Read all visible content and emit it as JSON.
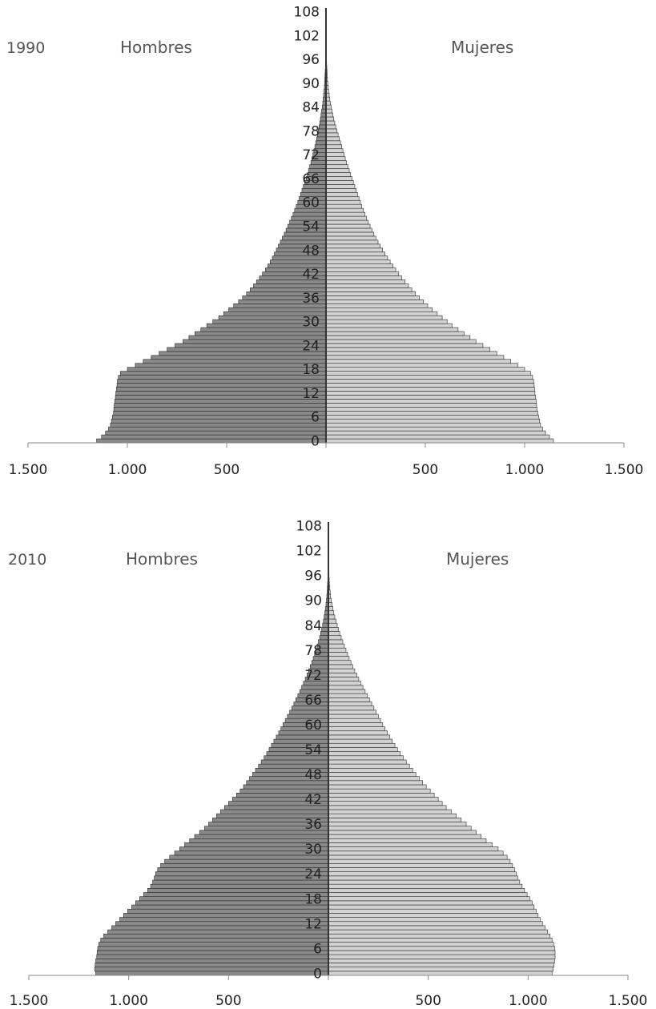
{
  "chart_data": [
    {
      "type": "bar",
      "orientation": "population-pyramid",
      "year_label": "1990",
      "left_label": "Hombres",
      "right_label": "Mujeres",
      "ages": [
        0,
        1,
        2,
        3,
        4,
        5,
        6,
        7,
        8,
        9,
        10,
        11,
        12,
        13,
        14,
        15,
        16,
        17,
        18,
        19,
        20,
        21,
        22,
        23,
        24,
        25,
        26,
        27,
        28,
        29,
        30,
        31,
        32,
        33,
        34,
        35,
        36,
        37,
        38,
        39,
        40,
        41,
        42,
        43,
        44,
        45,
        46,
        47,
        48,
        49,
        50,
        51,
        52,
        53,
        54,
        55,
        56,
        57,
        58,
        59,
        60,
        61,
        62,
        63,
        64,
        65,
        66,
        67,
        68,
        69,
        70,
        71,
        72,
        73,
        74,
        75,
        76,
        77,
        78,
        79,
        80,
        81,
        82,
        83,
        84,
        85,
        86,
        87,
        88,
        89,
        90,
        91,
        92,
        93,
        94,
        95,
        96,
        97,
        98,
        99,
        100,
        101,
        102,
        103,
        104,
        105,
        106,
        107,
        108
      ],
      "age_tick_labels": [
        "0",
        "6",
        "12",
        "18",
        "24",
        "30",
        "36",
        "42",
        "48",
        "54",
        "60",
        "66",
        "72",
        "78",
        "84",
        "90",
        "96",
        "102",
        "108"
      ],
      "x_tick_labels": [
        "1.500",
        "1.000",
        "500",
        "500",
        "1.000",
        "1.500"
      ],
      "xlim": [
        -1500,
        1500
      ],
      "series": [
        {
          "values": [
            1155,
            1130,
            1110,
            1095,
            1085,
            1080,
            1075,
            1070,
            1068,
            1066,
            1063,
            1060,
            1058,
            1055,
            1052,
            1050,
            1045,
            1035,
            1000,
            960,
            920,
            880,
            840,
            800,
            760,
            720,
            690,
            660,
            630,
            600,
            570,
            540,
            515,
            490,
            465,
            440,
            420,
            400,
            382,
            365,
            350,
            335,
            320,
            305,
            293,
            281,
            270,
            260,
            250,
            240,
            230,
            220,
            210,
            201,
            192,
            183,
            174,
            166,
            158,
            150,
            142,
            135,
            128,
            121,
            114,
            107,
            100,
            94,
            88,
            82,
            76,
            71,
            66,
            61,
            56,
            51,
            47,
            43,
            39,
            35,
            31,
            28,
            25,
            22,
            19,
            16,
            14,
            12,
            10,
            8,
            7,
            6,
            5,
            4,
            3,
            3,
            2,
            2,
            1,
            1,
            1,
            1,
            0,
            0,
            0,
            0,
            0,
            0,
            0
          ]
        },
        {
          "values": [
            1145,
            1125,
            1105,
            1090,
            1080,
            1075,
            1070,
            1066,
            1062,
            1060,
            1058,
            1055,
            1052,
            1050,
            1048,
            1045,
            1040,
            1030,
            1000,
            965,
            930,
            895,
            860,
            825,
            790,
            755,
            725,
            695,
            665,
            635,
            610,
            585,
            560,
            535,
            512,
            490,
            470,
            450,
            432,
            415,
            398,
            382,
            366,
            351,
            337,
            323,
            310,
            297,
            285,
            273,
            262,
            251,
            241,
            231,
            222,
            213,
            204,
            196,
            188,
            180,
            173,
            166,
            159,
            152,
            145,
            138,
            131,
            124,
            117,
            110,
            103,
            97,
            91,
            85,
            79,
            73,
            67,
            61,
            55,
            49,
            44,
            39,
            34,
            30,
            26,
            22,
            19,
            16,
            13,
            11,
            9,
            7,
            6,
            5,
            4,
            3,
            2,
            2,
            1,
            1,
            1,
            1,
            0,
            0,
            0,
            0,
            0,
            0,
            0
          ]
        }
      ]
    },
    {
      "type": "bar",
      "orientation": "population-pyramid",
      "year_label": "2010",
      "left_label": "Hombres",
      "right_label": "Mujeres",
      "ages": [
        0,
        1,
        2,
        3,
        4,
        5,
        6,
        7,
        8,
        9,
        10,
        11,
        12,
        13,
        14,
        15,
        16,
        17,
        18,
        19,
        20,
        21,
        22,
        23,
        24,
        25,
        26,
        27,
        28,
        29,
        30,
        31,
        32,
        33,
        34,
        35,
        36,
        37,
        38,
        39,
        40,
        41,
        42,
        43,
        44,
        45,
        46,
        47,
        48,
        49,
        50,
        51,
        52,
        53,
        54,
        55,
        56,
        57,
        58,
        59,
        60,
        61,
        62,
        63,
        64,
        65,
        66,
        67,
        68,
        69,
        70,
        71,
        72,
        73,
        74,
        75,
        76,
        77,
        78,
        79,
        80,
        81,
        82,
        83,
        84,
        85,
        86,
        87,
        88,
        89,
        90,
        91,
        92,
        93,
        94,
        95,
        96,
        97,
        98,
        99,
        100,
        101,
        102,
        103,
        104,
        105,
        106,
        107,
        108
      ],
      "age_tick_labels": [
        "0",
        "6",
        "12",
        "18",
        "24",
        "30",
        "36",
        "42",
        "48",
        "54",
        "60",
        "66",
        "72",
        "78",
        "84",
        "90",
        "96",
        "102",
        "108"
      ],
      "x_tick_labels": [
        "1.500",
        "1.000",
        "500",
        "500",
        "1.000",
        "1.500"
      ],
      "xlim": [
        -1500,
        1500
      ],
      "series": [
        {
          "values": [
            1165,
            1170,
            1168,
            1165,
            1160,
            1158,
            1155,
            1150,
            1140,
            1125,
            1105,
            1085,
            1065,
            1045,
            1025,
            1005,
            985,
            965,
            945,
            925,
            905,
            890,
            880,
            872,
            865,
            855,
            840,
            820,
            795,
            770,
            745,
            720,
            695,
            670,
            645,
            620,
            600,
            580,
            560,
            540,
            520,
            500,
            480,
            460,
            442,
            425,
            410,
            395,
            380,
            365,
            350,
            336,
            322,
            309,
            297,
            285,
            273,
            261,
            249,
            238,
            227,
            216,
            205,
            194,
            183,
            173,
            163,
            153,
            143,
            134,
            125,
            116,
            107,
            99,
            91,
            83,
            76,
            69,
            62,
            56,
            50,
            44,
            39,
            34,
            29,
            25,
            21,
            18,
            15,
            12,
            10,
            8,
            6,
            5,
            4,
            3,
            2,
            2,
            1,
            1,
            1,
            1,
            0,
            0,
            0,
            0,
            0,
            0,
            0
          ]
        },
        {
          "values": [
            1120,
            1125,
            1130,
            1133,
            1135,
            1135,
            1133,
            1128,
            1120,
            1110,
            1098,
            1085,
            1072,
            1060,
            1050,
            1040,
            1030,
            1020,
            1008,
            995,
            982,
            970,
            958,
            948,
            940,
            932,
            922,
            910,
            895,
            875,
            850,
            820,
            790,
            765,
            740,
            715,
            690,
            665,
            640,
            615,
            590,
            570,
            550,
            530,
            510,
            490,
            472,
            455,
            438,
            422,
            406,
            390,
            375,
            360,
            346,
            333,
            320,
            307,
            295,
            283,
            272,
            261,
            250,
            239,
            228,
            217,
            206,
            195,
            184,
            173,
            162,
            152,
            142,
            132,
            122,
            113,
            104,
            96,
            88,
            80,
            72,
            64,
            57,
            50,
            44,
            38,
            32,
            27,
            22,
            18,
            14,
            11,
            9,
            7,
            5,
            4,
            3,
            2,
            2,
            1,
            1,
            1,
            1,
            0,
            0,
            0,
            0,
            0,
            0
          ]
        }
      ]
    }
  ]
}
